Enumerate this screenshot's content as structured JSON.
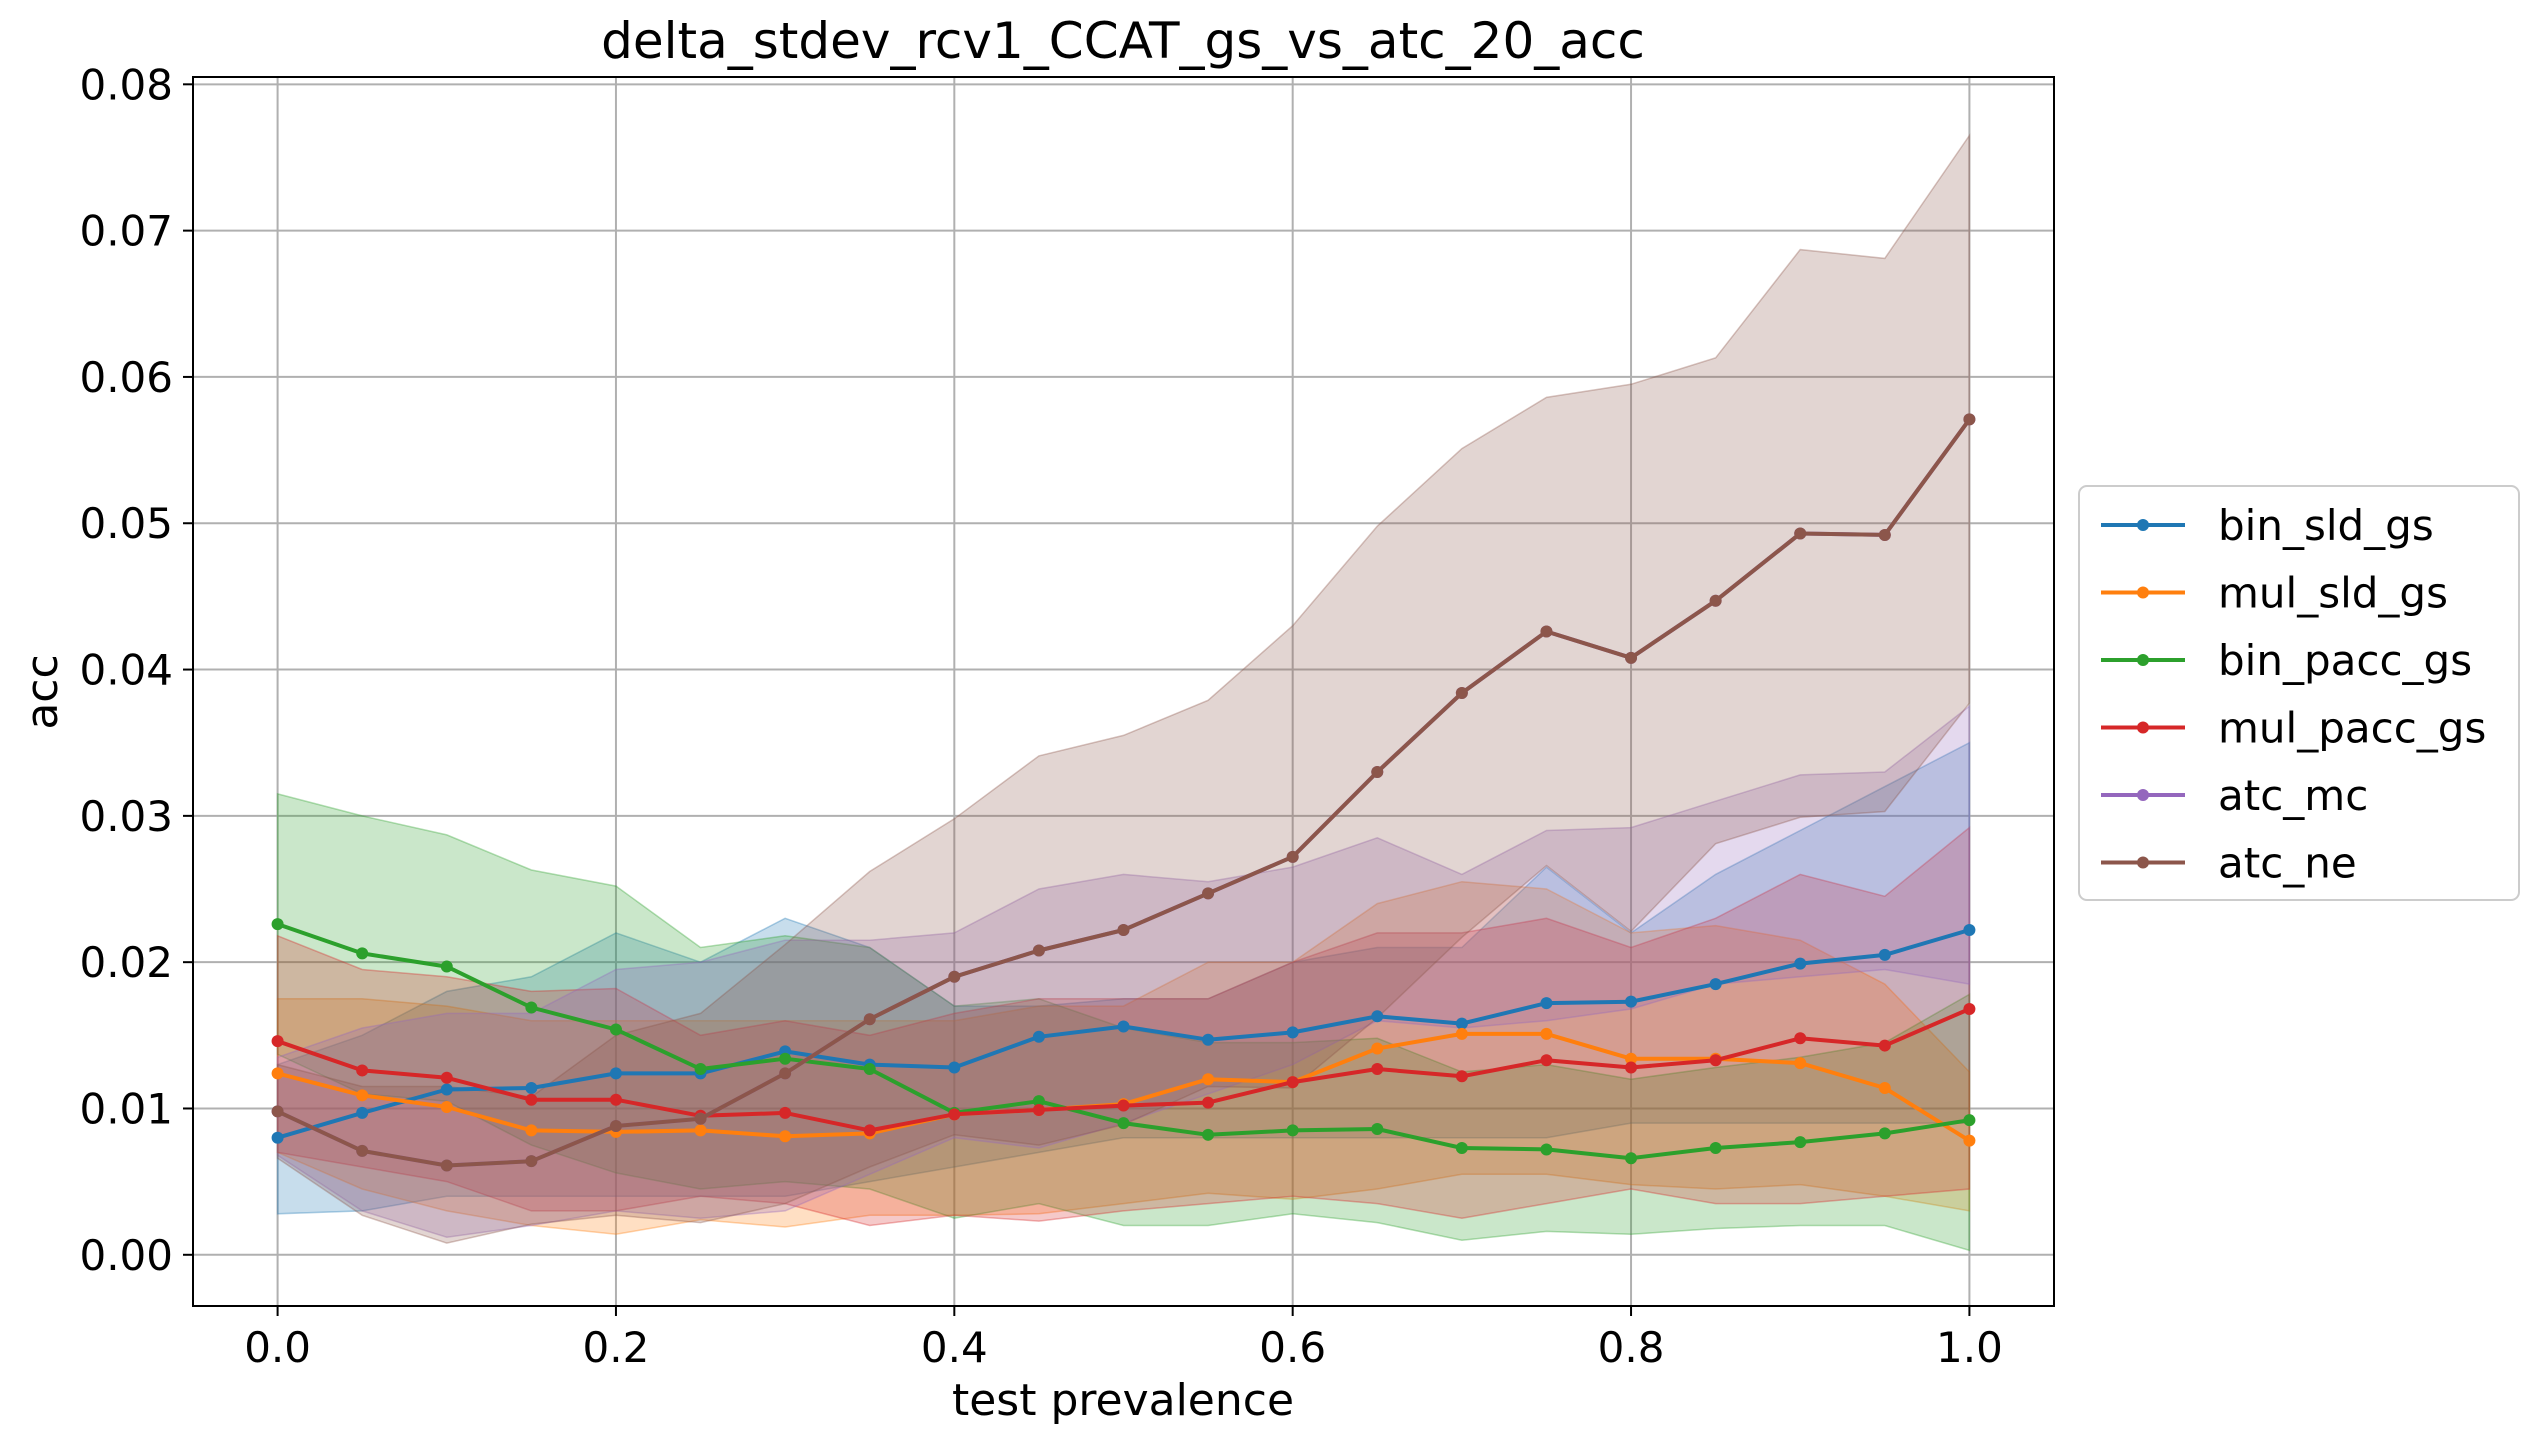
{
  "chart_data": {
    "type": "line",
    "title": "delta_stdev_rcv1_CCAT_gs_vs_atc_20_acc",
    "xlabel": "test prevalence",
    "ylabel": "acc",
    "xlim": [
      -0.05,
      1.05
    ],
    "ylim": [
      -0.0035,
      0.0805
    ],
    "xticks": [
      0.0,
      0.2,
      0.4,
      0.6,
      0.8,
      1.0
    ],
    "xtick_labels": [
      "0.0",
      "0.2",
      "0.4",
      "0.6",
      "0.8",
      "1.0"
    ],
    "yticks": [
      0.0,
      0.01,
      0.02,
      0.03,
      0.04,
      0.05,
      0.06,
      0.07,
      0.08
    ],
    "ytick_labels": [
      "0.00",
      "0.01",
      "0.02",
      "0.03",
      "0.04",
      "0.05",
      "0.06",
      "0.07",
      "0.08"
    ],
    "grid": true,
    "legend_position": "outside-right",
    "x": [
      0.0,
      0.05,
      0.1,
      0.15,
      0.2,
      0.25,
      0.3,
      0.35,
      0.4,
      0.45,
      0.5,
      0.55,
      0.6,
      0.65,
      0.7,
      0.75,
      0.8,
      0.85,
      0.9,
      0.95,
      1.0
    ],
    "series": [
      {
        "name": "bin_sld_gs",
        "color": "#1f77b4",
        "values": [
          0.008,
          0.0097,
          0.0113,
          0.0114,
          0.0124,
          0.0124,
          0.0139,
          0.013,
          0.0128,
          0.0149,
          0.0156,
          0.0147,
          0.0152,
          0.0163,
          0.0158,
          0.0172,
          0.0173,
          0.0185,
          0.0199,
          0.0205,
          0.0222
        ],
        "band_upper": [
          0.013,
          0.015,
          0.018,
          0.019,
          0.022,
          0.02,
          0.023,
          0.021,
          0.017,
          0.017,
          0.0175,
          0.0175,
          0.02,
          0.021,
          0.021,
          0.0265,
          0.022,
          0.026,
          0.029,
          0.032,
          0.035
        ],
        "band_lower": [
          0.0028,
          0.003,
          0.004,
          0.004,
          0.004,
          0.004,
          0.004,
          0.005,
          0.006,
          0.007,
          0.008,
          0.008,
          0.008,
          0.008,
          0.008,
          0.008,
          0.009,
          0.009,
          0.009,
          0.009,
          0.009
        ]
      },
      {
        "name": "mul_sld_gs",
        "color": "#ff7f0e",
        "values": [
          0.0124,
          0.0109,
          0.0101,
          0.0085,
          0.0084,
          0.0085,
          0.0081,
          0.0083,
          0.0096,
          0.0099,
          0.0103,
          0.012,
          0.0118,
          0.0141,
          0.0151,
          0.0151,
          0.0134,
          0.0134,
          0.0131,
          0.0114,
          0.0078
        ],
        "band_upper": [
          0.0175,
          0.0175,
          0.017,
          0.016,
          0.016,
          0.016,
          0.016,
          0.016,
          0.016,
          0.017,
          0.017,
          0.02,
          0.02,
          0.024,
          0.0255,
          0.025,
          0.022,
          0.0225,
          0.0215,
          0.0185,
          0.0125
        ],
        "band_lower": [
          0.007,
          0.0045,
          0.003,
          0.002,
          0.0014,
          0.0024,
          0.0019,
          0.0027,
          0.0027,
          0.0028,
          0.0035,
          0.0042,
          0.0038,
          0.0045,
          0.0055,
          0.0055,
          0.0048,
          0.0045,
          0.0048,
          0.004,
          0.003
        ]
      },
      {
        "name": "bin_pacc_gs",
        "color": "#2ca02c",
        "values": [
          0.0226,
          0.0206,
          0.0197,
          0.0169,
          0.0154,
          0.0127,
          0.0134,
          0.0127,
          0.0097,
          0.0105,
          0.009,
          0.0082,
          0.0085,
          0.0086,
          0.0073,
          0.0072,
          0.0066,
          0.0073,
          0.0077,
          0.0083,
          0.0092
        ],
        "band_upper": [
          0.0315,
          0.03,
          0.0287,
          0.0263,
          0.0252,
          0.021,
          0.0218,
          0.021,
          0.017,
          0.0175,
          0.0155,
          0.0145,
          0.0145,
          0.0148,
          0.0125,
          0.013,
          0.012,
          0.0128,
          0.0135,
          0.0145,
          0.0178
        ],
        "band_lower": [
          0.0137,
          0.011,
          0.0105,
          0.0075,
          0.0056,
          0.0045,
          0.005,
          0.0045,
          0.0025,
          0.0035,
          0.002,
          0.002,
          0.0028,
          0.0022,
          0.001,
          0.0016,
          0.0014,
          0.0018,
          0.002,
          0.002,
          0.0003
        ]
      },
      {
        "name": "mul_pacc_gs",
        "color": "#d62728",
        "values": [
          0.0146,
          0.0126,
          0.0121,
          0.0106,
          0.0106,
          0.0095,
          0.0097,
          0.0085,
          0.0096,
          0.0099,
          0.0102,
          0.0104,
          0.0118,
          0.0127,
          0.0122,
          0.0133,
          0.0128,
          0.0133,
          0.0148,
          0.0143,
          0.0168
        ],
        "band_upper": [
          0.0218,
          0.0195,
          0.019,
          0.018,
          0.0182,
          0.015,
          0.016,
          0.015,
          0.0165,
          0.0175,
          0.0175,
          0.0175,
          0.02,
          0.022,
          0.022,
          0.023,
          0.021,
          0.023,
          0.026,
          0.0245,
          0.0292
        ],
        "band_lower": [
          0.007,
          0.006,
          0.005,
          0.003,
          0.003,
          0.004,
          0.0035,
          0.002,
          0.0027,
          0.0023,
          0.003,
          0.0035,
          0.004,
          0.0035,
          0.0025,
          0.0035,
          0.0045,
          0.0035,
          0.0035,
          0.004,
          0.0045
        ]
      },
      {
        "name": "atc_mc",
        "color": "#9467bd",
        "values": [
          0.0098,
          0.0071,
          0.0061,
          0.0064,
          0.0088,
          0.0093,
          0.0124,
          0.0161,
          0.019,
          0.0208,
          0.0222,
          0.0247,
          0.0272,
          0.033,
          0.0384,
          0.0426,
          0.0408,
          0.0447,
          0.0493,
          0.0492,
          0.0571
        ],
        "band_upper": [
          0.0135,
          0.0155,
          0.0165,
          0.0165,
          0.0195,
          0.02,
          0.0215,
          0.0215,
          0.022,
          0.025,
          0.026,
          0.0255,
          0.0265,
          0.0285,
          0.026,
          0.029,
          0.0292,
          0.031,
          0.0328,
          0.033,
          0.0375
        ],
        "band_lower": [
          0.0068,
          0.003,
          0.0012,
          0.002,
          0.003,
          0.0025,
          0.003,
          0.0055,
          0.008,
          0.0073,
          0.009,
          0.011,
          0.013,
          0.016,
          0.0155,
          0.016,
          0.0168,
          0.0185,
          0.019,
          0.0195,
          0.0185
        ]
      },
      {
        "name": "atc_ne",
        "color": "#8c564b",
        "values": [
          0.0098,
          0.0071,
          0.0061,
          0.0064,
          0.0088,
          0.0093,
          0.0124,
          0.0161,
          0.019,
          0.0208,
          0.0222,
          0.0247,
          0.0272,
          0.033,
          0.0384,
          0.0426,
          0.0408,
          0.0447,
          0.0493,
          0.0492,
          0.0571
        ],
        "band_upper": [
          0.013,
          0.0115,
          0.0115,
          0.0108,
          0.015,
          0.0165,
          0.0212,
          0.0262,
          0.0298,
          0.0341,
          0.0355,
          0.0379,
          0.043,
          0.0498,
          0.0551,
          0.0586,
          0.0595,
          0.0613,
          0.0687,
          0.0681,
          0.0765
        ],
        "band_lower": [
          0.0066,
          0.0027,
          0.0008,
          0.0021,
          0.0027,
          0.0022,
          0.0035,
          0.006,
          0.0082,
          0.0075,
          0.0089,
          0.0115,
          0.0114,
          0.0162,
          0.0217,
          0.0266,
          0.0221,
          0.0281,
          0.0299,
          0.0303,
          0.0377
        ]
      }
    ]
  }
}
